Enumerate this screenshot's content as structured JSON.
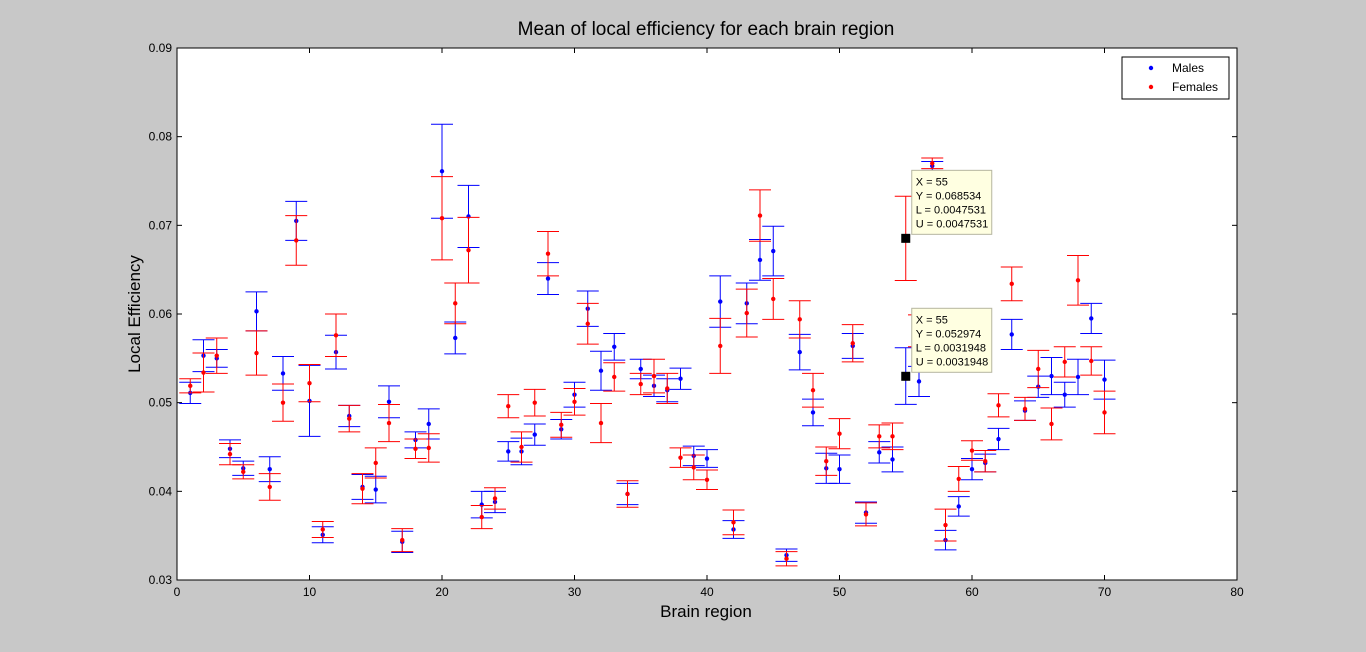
{
  "chart_data": {
    "type": "scatter",
    "title": "Mean of local efficiency for each brain region",
    "xlabel": "Brain region",
    "ylabel": "Local Efficiency",
    "xlim": [
      0,
      80
    ],
    "ylim": [
      0.03,
      0.09
    ],
    "xticks": [
      "0",
      "10",
      "20",
      "30",
      "40",
      "50",
      "60",
      "70",
      "80"
    ],
    "yticks": [
      "0.03",
      "0.04",
      "0.05",
      "0.06",
      "0.07",
      "0.08",
      "0.09"
    ],
    "grid": false,
    "legend_position": "top-right",
    "x": [
      1,
      2,
      3,
      4,
      5,
      6,
      7,
      8,
      9,
      10,
      11,
      12,
      13,
      14,
      15,
      16,
      17,
      18,
      19,
      20,
      21,
      22,
      23,
      24,
      25,
      26,
      27,
      28,
      29,
      30,
      31,
      32,
      33,
      34,
      35,
      36,
      37,
      38,
      39,
      40,
      41,
      42,
      43,
      44,
      45,
      46,
      47,
      48,
      49,
      50,
      51,
      52,
      53,
      54,
      55,
      56,
      57,
      58,
      59,
      60,
      61,
      62,
      63,
      64,
      65,
      66,
      67,
      68,
      69,
      70
    ],
    "series": [
      {
        "name": "Males",
        "color": "#0000ff",
        "values": [
          0.0511,
          0.0553,
          0.055,
          0.0448,
          0.0426,
          0.0603,
          0.0425,
          0.0533,
          0.0705,
          0.0502,
          0.0351,
          0.0557,
          0.0485,
          0.0405,
          0.0402,
          0.0501,
          0.0343,
          0.0458,
          0.0476,
          0.0761,
          0.0573,
          0.071,
          0.0385,
          0.0388,
          0.0445,
          0.0445,
          0.0464,
          0.064,
          0.047,
          0.0509,
          0.0606,
          0.0536,
          0.0563,
          0.0397,
          0.0538,
          0.0519,
          0.0514,
          0.0527,
          0.044,
          0.0437,
          0.0614,
          0.0357,
          0.0612,
          0.0661,
          0.0671,
          0.0328,
          0.0557,
          0.0489,
          0.0426,
          0.0425,
          0.0564,
          0.0376,
          0.0444,
          0.0436,
          0.053,
          0.0524,
          0.0767,
          0.0345,
          0.0383,
          0.0425,
          0.0432,
          0.0459,
          0.0577,
          0.0491,
          0.0518,
          0.053,
          0.0509,
          0.0529,
          0.0595,
          0.0526
        ],
        "error": [
          0.0012,
          0.0018,
          0.001,
          0.001,
          0.0008,
          0.0022,
          0.0014,
          0.0019,
          0.0022,
          0.004,
          0.0009,
          0.0019,
          0.0012,
          0.0014,
          0.0015,
          0.0018,
          0.0012,
          0.0009,
          0.0017,
          0.0053,
          0.0018,
          0.0035,
          0.0015,
          0.0012,
          0.0011,
          0.0015,
          0.0012,
          0.0018,
          0.0011,
          0.0014,
          0.002,
          0.0022,
          0.0015,
          0.0012,
          0.0011,
          0.0012,
          0.0013,
          0.0012,
          0.0011,
          0.001,
          0.0029,
          0.001,
          0.0023,
          0.0023,
          0.0028,
          0.0007,
          0.002,
          0.0015,
          0.0017,
          0.0016,
          0.0014,
          0.0012,
          0.0012,
          0.0014,
          0.0031948,
          0.0017,
          0.0005,
          0.0011,
          0.0011,
          0.0012,
          0.001,
          0.0012,
          0.0017,
          0.0011,
          0.0012,
          0.0021,
          0.0014,
          0.002,
          0.0017,
          0.0022
        ]
      },
      {
        "name": "Females",
        "color": "#ff0000",
        "values": [
          0.0519,
          0.0534,
          0.0553,
          0.0442,
          0.0422,
          0.0556,
          0.0405,
          0.05,
          0.0683,
          0.0522,
          0.0357,
          0.0576,
          0.0482,
          0.0403,
          0.0432,
          0.0477,
          0.0345,
          0.0448,
          0.0449,
          0.0708,
          0.0612,
          0.0672,
          0.0371,
          0.0392,
          0.0496,
          0.045,
          0.05,
          0.0668,
          0.0475,
          0.0501,
          0.0589,
          0.0477,
          0.0529,
          0.0397,
          0.0521,
          0.053,
          0.0516,
          0.0438,
          0.0427,
          0.0413,
          0.0564,
          0.0365,
          0.0601,
          0.0711,
          0.0617,
          0.0324,
          0.0594,
          0.0514,
          0.0434,
          0.0465,
          0.0567,
          0.0374,
          0.0462,
          0.0462,
          0.068534,
          0.0581,
          0.077,
          0.0362,
          0.0414,
          0.0446,
          0.0434,
          0.0497,
          0.0634,
          0.0493,
          0.0538,
          0.0476,
          0.0546,
          0.0638,
          0.0547,
          0.0489
        ],
        "error": [
          0.0008,
          0.0022,
          0.002,
          0.0012,
          0.0008,
          0.0025,
          0.0015,
          0.0021,
          0.0028,
          0.0021,
          0.0009,
          0.0024,
          0.0015,
          0.0017,
          0.0017,
          0.0021,
          0.0013,
          0.0011,
          0.0016,
          0.0047,
          0.0023,
          0.0037,
          0.0013,
          0.0012,
          0.0013,
          0.0017,
          0.0015,
          0.0025,
          0.0014,
          0.0015,
          0.0023,
          0.0022,
          0.0016,
          0.0015,
          0.0012,
          0.0019,
          0.0017,
          0.0011,
          0.0014,
          0.0011,
          0.0031,
          0.0014,
          0.0027,
          0.0029,
          0.0023,
          0.0008,
          0.0021,
          0.0019,
          0.0016,
          0.0017,
          0.0021,
          0.0013,
          0.0013,
          0.0015,
          0.0047531,
          0.0018,
          0.0006,
          0.0018,
          0.0014,
          0.0011,
          0.0012,
          0.0013,
          0.0019,
          0.0013,
          0.0021,
          0.0018,
          0.0017,
          0.0028,
          0.0016,
          0.0024
        ]
      }
    ],
    "datatips": [
      {
        "series": "Females",
        "x_text": "X = 55",
        "y_text": "Y = 0.068534",
        "l_text": "L = 0.0047531",
        "u_text": "U = 0.0047531",
        "x": 55,
        "y": 0.068534
      },
      {
        "series": "Males",
        "x_text": "X = 55",
        "y_text": "Y = 0.052974",
        "l_text": "L = 0.0031948",
        "u_text": "U = 0.0031948",
        "x": 55,
        "y": 0.052974
      }
    ]
  }
}
